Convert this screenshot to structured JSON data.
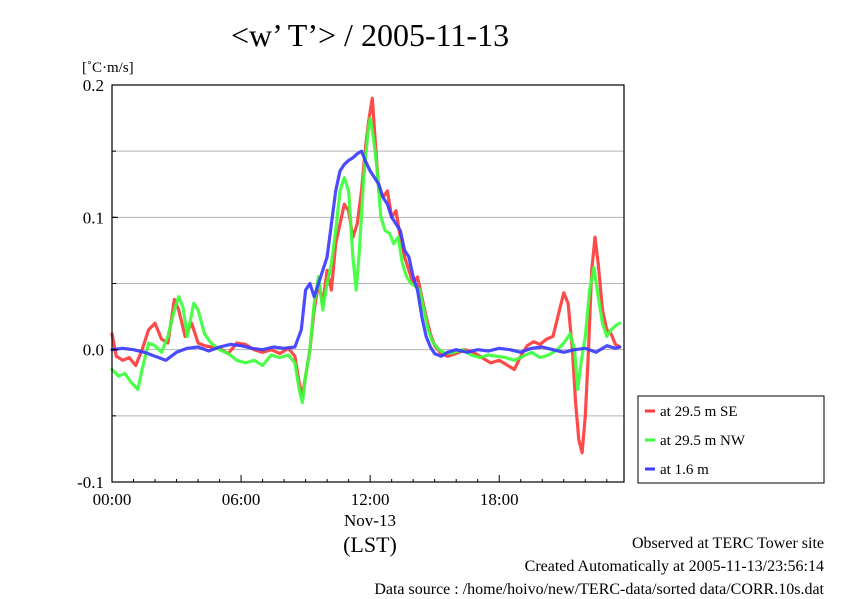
{
  "chart_data": {
    "type": "line",
    "title": "<w’ T’> / 2005-11-13",
    "unit_label": "[˚C·m/s]",
    "xlabel": "(LST)",
    "x_date_label": "Nov-13",
    "x_range_hours": [
      0,
      23.8
    ],
    "ylim": [
      -0.1,
      0.2
    ],
    "y_ticks": [
      {
        "value": -0.1,
        "label": "-0.1"
      },
      {
        "value": 0.0,
        "label": "0.0"
      },
      {
        "value": 0.1,
        "label": "0.1"
      },
      {
        "value": 0.2,
        "label": "0.2"
      }
    ],
    "y_gridlines": [
      -0.05,
      0.0,
      0.05,
      0.1,
      0.15
    ],
    "x_ticks": [
      {
        "value": 0,
        "label": "00:00"
      },
      {
        "value": 6,
        "label": "06:00"
      },
      {
        "value": 12,
        "label": "12:00"
      },
      {
        "value": 18,
        "label": "18:00"
      }
    ],
    "grid": "horizontal",
    "legend_position": "bottom-right",
    "series": [
      {
        "name": "at 29.5 m SE",
        "color": "#ff3b3b",
        "points": [
          [
            0,
            0.012
          ],
          [
            0.2,
            -0.005
          ],
          [
            0.5,
            -0.008
          ],
          [
            0.8,
            -0.006
          ],
          [
            1.1,
            -0.012
          ],
          [
            1.4,
            0.0
          ],
          [
            1.7,
            0.015
          ],
          [
            2.0,
            0.02
          ],
          [
            2.3,
            0.008
          ],
          [
            2.6,
            0.005
          ],
          [
            2.9,
            0.038
          ],
          [
            3.1,
            0.03
          ],
          [
            3.4,
            0.01
          ],
          [
            3.7,
            0.02
          ],
          [
            4.0,
            0.005
          ],
          [
            4.3,
            0.003
          ],
          [
            4.6,
            0.002
          ],
          [
            5.0,
            0.001
          ],
          [
            5.4,
            -0.003
          ],
          [
            5.8,
            0.005
          ],
          [
            6.2,
            0.004
          ],
          [
            6.6,
            0.0
          ],
          [
            7.0,
            -0.002
          ],
          [
            7.4,
            0.0
          ],
          [
            7.8,
            -0.003
          ],
          [
            8.2,
            0.001
          ],
          [
            8.5,
            -0.005
          ],
          [
            8.7,
            -0.025
          ],
          [
            8.85,
            -0.035
          ],
          [
            9.0,
            -0.02
          ],
          [
            9.2,
            0.0
          ],
          [
            9.4,
            0.03
          ],
          [
            9.6,
            0.05
          ],
          [
            9.8,
            0.035
          ],
          [
            10.0,
            0.06
          ],
          [
            10.2,
            0.045
          ],
          [
            10.4,
            0.08
          ],
          [
            10.6,
            0.095
          ],
          [
            10.8,
            0.11
          ],
          [
            11.0,
            0.105
          ],
          [
            11.2,
            0.085
          ],
          [
            11.4,
            0.095
          ],
          [
            11.6,
            0.12
          ],
          [
            11.8,
            0.155
          ],
          [
            11.95,
            0.175
          ],
          [
            12.1,
            0.19
          ],
          [
            12.25,
            0.155
          ],
          [
            12.4,
            0.12
          ],
          [
            12.6,
            0.115
          ],
          [
            12.8,
            0.12
          ],
          [
            13.0,
            0.1
          ],
          [
            13.2,
            0.105
          ],
          [
            13.4,
            0.085
          ],
          [
            13.6,
            0.07
          ],
          [
            13.8,
            0.06
          ],
          [
            14.0,
            0.05
          ],
          [
            14.2,
            0.055
          ],
          [
            14.4,
            0.04
          ],
          [
            14.6,
            0.025
          ],
          [
            14.8,
            0.012
          ],
          [
            15.0,
            0.003
          ],
          [
            15.3,
            -0.003
          ],
          [
            15.6,
            -0.005
          ],
          [
            16.0,
            -0.003
          ],
          [
            16.4,
            0.0
          ],
          [
            16.8,
            -0.002
          ],
          [
            17.2,
            -0.006
          ],
          [
            17.6,
            -0.01
          ],
          [
            18.0,
            -0.008
          ],
          [
            18.4,
            -0.012
          ],
          [
            18.7,
            -0.015
          ],
          [
            19.0,
            -0.005
          ],
          [
            19.3,
            0.003
          ],
          [
            19.6,
            0.006
          ],
          [
            19.9,
            0.004
          ],
          [
            20.2,
            0.008
          ],
          [
            20.5,
            0.01
          ],
          [
            20.8,
            0.03
          ],
          [
            21.0,
            0.043
          ],
          [
            21.2,
            0.035
          ],
          [
            21.4,
            0.0
          ],
          [
            21.55,
            -0.04
          ],
          [
            21.7,
            -0.068
          ],
          [
            21.85,
            -0.078
          ],
          [
            22.0,
            -0.05
          ],
          [
            22.15,
            0.0
          ],
          [
            22.3,
            0.06
          ],
          [
            22.45,
            0.085
          ],
          [
            22.6,
            0.065
          ],
          [
            22.8,
            0.03
          ],
          [
            23.0,
            0.015
          ],
          [
            23.2,
            0.012
          ],
          [
            23.4,
            0.004
          ],
          [
            23.6,
            0.002
          ]
        ]
      },
      {
        "name": "at 29.5 m NW",
        "color": "#3cff3c",
        "points": [
          [
            0,
            -0.015
          ],
          [
            0.3,
            -0.02
          ],
          [
            0.6,
            -0.018
          ],
          [
            0.9,
            -0.025
          ],
          [
            1.2,
            -0.03
          ],
          [
            1.4,
            -0.015
          ],
          [
            1.7,
            0.005
          ],
          [
            2.0,
            0.003
          ],
          [
            2.3,
            -0.002
          ],
          [
            2.6,
            0.01
          ],
          [
            2.9,
            0.03
          ],
          [
            3.1,
            0.04
          ],
          [
            3.3,
            0.032
          ],
          [
            3.5,
            0.01
          ],
          [
            3.8,
            0.035
          ],
          [
            4.0,
            0.03
          ],
          [
            4.3,
            0.012
          ],
          [
            4.6,
            0.005
          ],
          [
            5.0,
            0.0
          ],
          [
            5.4,
            -0.003
          ],
          [
            5.8,
            -0.008
          ],
          [
            6.2,
            -0.01
          ],
          [
            6.6,
            -0.008
          ],
          [
            7.0,
            -0.012
          ],
          [
            7.4,
            -0.004
          ],
          [
            7.8,
            -0.006
          ],
          [
            8.2,
            -0.004
          ],
          [
            8.5,
            -0.01
          ],
          [
            8.7,
            -0.03
          ],
          [
            8.85,
            -0.04
          ],
          [
            9.0,
            -0.02
          ],
          [
            9.2,
            0.0
          ],
          [
            9.4,
            0.035
          ],
          [
            9.6,
            0.055
          ],
          [
            9.8,
            0.03
          ],
          [
            10.0,
            0.05
          ],
          [
            10.2,
            0.065
          ],
          [
            10.4,
            0.09
          ],
          [
            10.6,
            0.12
          ],
          [
            10.8,
            0.13
          ],
          [
            11.0,
            0.12
          ],
          [
            11.2,
            0.07
          ],
          [
            11.35,
            0.045
          ],
          [
            11.5,
            0.075
          ],
          [
            11.7,
            0.13
          ],
          [
            11.9,
            0.165
          ],
          [
            12.0,
            0.175
          ],
          [
            12.15,
            0.16
          ],
          [
            12.3,
            0.14
          ],
          [
            12.5,
            0.1
          ],
          [
            12.7,
            0.09
          ],
          [
            12.9,
            0.088
          ],
          [
            13.1,
            0.08
          ],
          [
            13.3,
            0.085
          ],
          [
            13.5,
            0.065
          ],
          [
            13.7,
            0.055
          ],
          [
            13.9,
            0.05
          ],
          [
            14.1,
            0.048
          ],
          [
            14.3,
            0.045
          ],
          [
            14.5,
            0.03
          ],
          [
            14.7,
            0.015
          ],
          [
            14.9,
            0.006
          ],
          [
            15.2,
            0.0
          ],
          [
            15.5,
            -0.003
          ],
          [
            15.9,
            -0.002
          ],
          [
            16.3,
            0.0
          ],
          [
            16.7,
            -0.004
          ],
          [
            17.1,
            -0.006
          ],
          [
            17.5,
            -0.004
          ],
          [
            17.9,
            -0.005
          ],
          [
            18.3,
            -0.006
          ],
          [
            18.7,
            -0.008
          ],
          [
            19.1,
            -0.005
          ],
          [
            19.5,
            -0.002
          ],
          [
            19.9,
            -0.006
          ],
          [
            20.3,
            -0.004
          ],
          [
            20.7,
            0.0
          ],
          [
            21.0,
            0.005
          ],
          [
            21.3,
            0.012
          ],
          [
            21.5,
            0.0
          ],
          [
            21.65,
            -0.03
          ],
          [
            21.8,
            -0.01
          ],
          [
            22.0,
            0.01
          ],
          [
            22.2,
            0.045
          ],
          [
            22.4,
            0.062
          ],
          [
            22.6,
            0.04
          ],
          [
            22.8,
            0.02
          ],
          [
            23.0,
            0.01
          ],
          [
            23.2,
            0.015
          ],
          [
            23.4,
            0.018
          ],
          [
            23.6,
            0.02
          ]
        ]
      },
      {
        "name": "at 1.6 m",
        "color": "#3c3cff",
        "points": [
          [
            0,
            0.0
          ],
          [
            0.5,
            0.001
          ],
          [
            1.0,
            0.0
          ],
          [
            1.5,
            -0.002
          ],
          [
            2.0,
            -0.005
          ],
          [
            2.5,
            -0.008
          ],
          [
            3.0,
            -0.002
          ],
          [
            3.5,
            0.001
          ],
          [
            4.0,
            0.002
          ],
          [
            4.5,
            -0.001
          ],
          [
            5.0,
            0.002
          ],
          [
            5.5,
            0.004
          ],
          [
            6.0,
            0.003
          ],
          [
            6.5,
            0.001
          ],
          [
            7.0,
            0.0
          ],
          [
            7.5,
            0.002
          ],
          [
            8.0,
            0.001
          ],
          [
            8.5,
            0.002
          ],
          [
            8.8,
            0.015
          ],
          [
            9.0,
            0.045
          ],
          [
            9.2,
            0.05
          ],
          [
            9.4,
            0.04
          ],
          [
            9.6,
            0.05
          ],
          [
            9.8,
            0.06
          ],
          [
            10.0,
            0.07
          ],
          [
            10.2,
            0.095
          ],
          [
            10.4,
            0.12
          ],
          [
            10.6,
            0.135
          ],
          [
            10.8,
            0.14
          ],
          [
            11.0,
            0.143
          ],
          [
            11.2,
            0.145
          ],
          [
            11.4,
            0.148
          ],
          [
            11.6,
            0.15
          ],
          [
            11.8,
            0.142
          ],
          [
            12.0,
            0.135
          ],
          [
            12.2,
            0.13
          ],
          [
            12.4,
            0.125
          ],
          [
            12.6,
            0.115
          ],
          [
            12.8,
            0.11
          ],
          [
            13.0,
            0.1
          ],
          [
            13.2,
            0.095
          ],
          [
            13.4,
            0.09
          ],
          [
            13.6,
            0.075
          ],
          [
            13.8,
            0.07
          ],
          [
            14.0,
            0.055
          ],
          [
            14.2,
            0.045
          ],
          [
            14.4,
            0.025
          ],
          [
            14.6,
            0.01
          ],
          [
            14.8,
            0.002
          ],
          [
            15.0,
            -0.003
          ],
          [
            15.3,
            -0.005
          ],
          [
            15.6,
            -0.002
          ],
          [
            16.0,
            0.0
          ],
          [
            16.5,
            -0.002
          ],
          [
            17.0,
            0.0
          ],
          [
            17.5,
            -0.001
          ],
          [
            18.0,
            0.001
          ],
          [
            18.5,
            0.0
          ],
          [
            19.0,
            -0.002
          ],
          [
            19.5,
            0.001
          ],
          [
            20.0,
            0.002
          ],
          [
            20.5,
            0.0
          ],
          [
            21.0,
            -0.002
          ],
          [
            21.5,
            0.0
          ],
          [
            22.0,
            0.001
          ],
          [
            22.5,
            -0.002
          ],
          [
            23.0,
            0.003
          ],
          [
            23.4,
            0.001
          ],
          [
            23.6,
            0.002
          ]
        ]
      }
    ]
  },
  "footer": {
    "site": "Observed at TERC Tower site",
    "created": "Created Automatically at 2005-11-13/23:56:14",
    "source": "Data source : /home/hoivo/new/TERC-data/sorted  data/CORR.10s.dat"
  }
}
